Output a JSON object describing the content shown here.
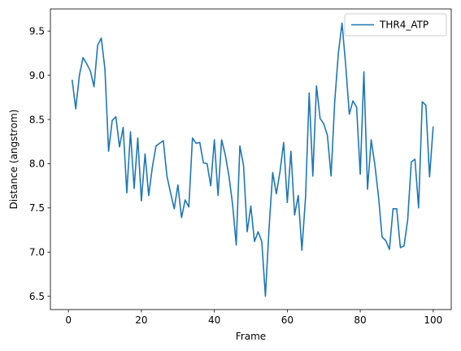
{
  "chart_data": {
    "type": "line",
    "title": "",
    "xlabel": "Frame",
    "ylabel": "Distance (angstrom)",
    "xlim": [
      -4.95,
      104.95
    ],
    "ylim": [
      6.35,
      9.75
    ],
    "xticks": [
      0,
      20,
      40,
      60,
      80,
      100
    ],
    "xtick_labels": [
      "0",
      "20",
      "40",
      "60",
      "80",
      "100"
    ],
    "yticks": [
      6.5,
      7.0,
      7.5,
      8.0,
      8.5,
      9.0,
      9.5
    ],
    "ytick_labels": [
      "6.5",
      "7.0",
      "7.5",
      "8.0",
      "8.5",
      "9.0",
      "9.5"
    ],
    "grid": false,
    "legend_position": "upper right",
    "series": [
      {
        "name": "THR4_ATP",
        "color": "#1f77b4",
        "x": [
          1,
          2,
          3,
          4,
          5,
          6,
          7,
          8,
          9,
          10,
          11,
          12,
          13,
          14,
          15,
          16,
          17,
          18,
          19,
          20,
          21,
          22,
          23,
          24,
          25,
          26,
          27,
          28,
          29,
          30,
          31,
          32,
          33,
          34,
          35,
          36,
          37,
          38,
          39,
          40,
          41,
          42,
          43,
          44,
          45,
          46,
          47,
          48,
          49,
          50,
          51,
          52,
          53,
          54,
          55,
          56,
          57,
          58,
          59,
          60,
          61,
          62,
          63,
          64,
          65,
          66,
          67,
          68,
          69,
          70,
          71,
          72,
          73,
          74,
          75,
          76,
          77,
          78,
          79,
          80,
          81,
          82,
          83,
          84,
          85,
          86,
          87,
          88,
          89,
          90,
          91,
          92,
          93,
          94,
          95,
          96,
          97,
          98,
          99,
          100
        ],
        "values": [
          8.95,
          8.62,
          9.0,
          9.2,
          9.13,
          9.05,
          8.87,
          9.34,
          9.42,
          9.07,
          8.14,
          8.49,
          8.53,
          8.19,
          8.41,
          7.67,
          8.36,
          7.72,
          8.29,
          7.58,
          8.11,
          7.64,
          7.96,
          8.2,
          8.23,
          8.26,
          7.86,
          7.67,
          7.49,
          7.76,
          7.39,
          7.59,
          7.51,
          8.29,
          8.23,
          8.24,
          8.01,
          8.0,
          7.75,
          8.27,
          7.64,
          8.27,
          8.1,
          7.86,
          7.54,
          7.08,
          8.2,
          7.98,
          7.23,
          7.52,
          7.12,
          7.23,
          7.12,
          6.5,
          7.27,
          7.9,
          7.66,
          7.91,
          8.24,
          7.56,
          8.14,
          7.42,
          7.64,
          7.02,
          7.62,
          8.8,
          7.86,
          8.88,
          8.51,
          8.45,
          8.32,
          7.86,
          8.7,
          9.25,
          9.59,
          9.12,
          8.56,
          8.71,
          8.64,
          7.88,
          9.04,
          7.71,
          8.27,
          7.99,
          7.63,
          7.17,
          7.13,
          7.03,
          7.49,
          7.49,
          7.05,
          7.07,
          7.36,
          8.02,
          8.05,
          7.5,
          8.7,
          8.66,
          7.85,
          8.42
        ]
      }
    ]
  }
}
